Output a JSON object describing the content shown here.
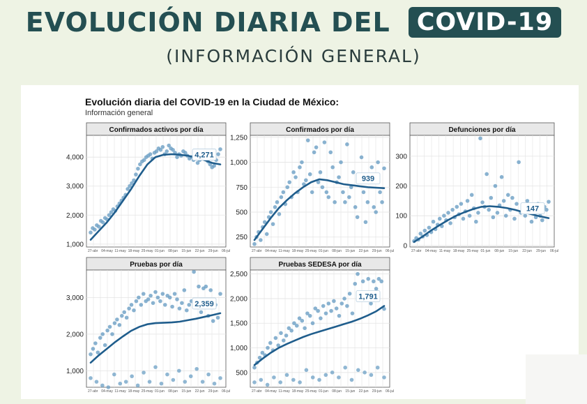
{
  "banner": {
    "title_main": "EVOLUCIÓN DIARIA DEL",
    "title_highlight": "COVID-19",
    "subtitle": "(INFORMACIÓN GENERAL)"
  },
  "figure": {
    "title": "Evolución diaria del COVID-19 en la Ciudad de México:",
    "subtitle": "Información general"
  },
  "colors": {
    "banner_bg": "#eef3e4",
    "banner_text": "#244f52",
    "point": "#6b9fc4",
    "trend": "#1f5d8c",
    "grid": "#e3e3e3",
    "strip": "#e8e8e8"
  },
  "x_tick_labels": [
    "27-abr",
    "04-may",
    "11-may",
    "18-may",
    "25-may",
    "01-jun",
    "08-jun",
    "15-jun",
    "22-jun",
    "29-jun",
    "06-jul"
  ],
  "chart_data": [
    {
      "type": "scatter",
      "title": "Confirmados activos por día",
      "ylim": [
        900,
        4750
      ],
      "yticks": [
        1000,
        2000,
        3000,
        4000
      ],
      "ytick_labels": [
        "1,000",
        "2,000",
        "3,000",
        "4,000"
      ],
      "last_label": "4,271",
      "values": [
        1400,
        1550,
        1500,
        1650,
        1600,
        1800,
        1750,
        1900,
        1850,
        2000,
        2100,
        2200,
        2150,
        2300,
        2400,
        2500,
        2600,
        2700,
        2900,
        3000,
        3100,
        3200,
        3400,
        3600,
        3750,
        3850,
        3900,
        4000,
        4050,
        4100,
        3950,
        4150,
        4200,
        4300,
        4250,
        4350,
        4100,
        4200,
        4400,
        4300,
        4250,
        4150,
        4000,
        4100,
        4050,
        4200,
        4150,
        4050,
        3950,
        4000,
        3900,
        4050,
        3800,
        3900,
        4000,
        4150,
        3950,
        3850,
        3750,
        3650,
        3700,
        3900,
        4100,
        4271
      ],
      "trend": [
        1150,
        1450,
        1750,
        2100,
        2500,
        2900,
        3350,
        3750,
        4000,
        4080,
        4100,
        4080,
        4050,
        3980,
        3900,
        3800,
        3750
      ]
    },
    {
      "type": "scatter",
      "title": "Confirmados por día",
      "ylim": [
        150,
        1270
      ],
      "yticks": [
        250,
        500,
        750,
        1000,
        1250
      ],
      "ytick_labels": [
        "250",
        "500",
        "750",
        "1,000",
        "1,250"
      ],
      "last_label": "939",
      "values": [
        180,
        250,
        300,
        220,
        350,
        400,
        280,
        450,
        500,
        380,
        550,
        600,
        480,
        650,
        700,
        580,
        750,
        800,
        650,
        900,
        850,
        700,
        950,
        1000,
        780,
        820,
        1220,
        880,
        700,
        1100,
        1150,
        800,
        900,
        750,
        1200,
        700,
        650,
        1100,
        950,
        600,
        800,
        850,
        1000,
        700,
        600,
        1180,
        650,
        750,
        900,
        550,
        450,
        800,
        1050,
        700,
        400,
        600,
        850,
        950,
        550,
        500,
        1000,
        700,
        600,
        939
      ],
      "trend": [
        220,
        330,
        440,
        540,
        620,
        690,
        750,
        800,
        830,
        820,
        800,
        780,
        770,
        760,
        750,
        745,
        740
      ]
    },
    {
      "type": "scatter",
      "title": "Defunciones por día",
      "ylim": [
        -5,
        370
      ],
      "yticks": [
        0,
        100,
        200,
        300
      ],
      "ytick_labels": [
        "0",
        "100",
        "200",
        "300"
      ],
      "last_label": "147",
      "values": [
        15,
        25,
        20,
        40,
        30,
        50,
        35,
        60,
        45,
        80,
        55,
        70,
        90,
        65,
        100,
        85,
        110,
        75,
        120,
        95,
        130,
        105,
        140,
        90,
        115,
        150,
        100,
        170,
        125,
        80,
        110,
        360,
        145,
        130,
        240,
        120,
        160,
        95,
        200,
        110,
        135,
        230,
        150,
        100,
        170,
        120,
        160,
        90,
        140,
        280,
        110,
        130,
        100,
        150,
        120,
        80,
        110,
        95,
        140,
        100,
        85,
        130,
        120,
        147
      ],
      "trend": [
        12,
        30,
        50,
        68,
        85,
        100,
        112,
        122,
        130,
        132,
        130,
        126,
        120,
        112,
        105,
        98,
        92
      ]
    },
    {
      "type": "scatter",
      "title": "Pruebas por día",
      "ylim": [
        550,
        3750
      ],
      "yticks": [
        1000,
        2000,
        3000
      ],
      "ytick_labels": [
        "1,000",
        "2,000",
        "3,000"
      ],
      "last_label": "2,359",
      "values": [
        1450,
        1600,
        1750,
        1500,
        1900,
        2000,
        1700,
        2100,
        2200,
        2000,
        2300,
        2400,
        2250,
        2500,
        2600,
        2450,
        2700,
        2800,
        2650,
        2900,
        3000,
        2800,
        3100,
        2900,
        2950,
        3050,
        2850,
        3150,
        3000,
        2900,
        3100,
        2800,
        3050,
        3000,
        2750,
        3100,
        2950,
        2700,
        2850,
        3200,
        2650,
        2800,
        2900,
        3700,
        2750,
        3300,
        2600,
        3250,
        3300,
        2500,
        3200,
        2359,
        2800,
        2450,
        3100
      ],
      "low_values": [
        800,
        700,
        600,
        550,
        900,
        650,
        700,
        850,
        600,
        950,
        700,
        1100,
        650,
        900,
        750,
        1000,
        700,
        850,
        1050,
        700,
        900,
        650,
        800
      ],
      "trend": [
        1220,
        1420,
        1600,
        1780,
        1940,
        2090,
        2200,
        2270,
        2300,
        2310,
        2320,
        2340,
        2380,
        2420,
        2470,
        2520,
        2570
      ]
    },
    {
      "type": "scatter",
      "title": "Pruebas SEDESA por día",
      "ylim": [
        200,
        2580
      ],
      "yticks": [
        500,
        1000,
        1500,
        2000,
        2500
      ],
      "ytick_labels": [
        "500",
        "1,000",
        "1,500",
        "2,000",
        "2,500"
      ],
      "last_label": "1,791",
      "values": [
        600,
        700,
        800,
        900,
        850,
        1000,
        1100,
        950,
        1200,
        1050,
        1300,
        1150,
        1250,
        1400,
        1350,
        1500,
        1450,
        1600,
        1550,
        1400,
        1700,
        1650,
        1500,
        1800,
        1750,
        1600,
        1850,
        1700,
        1900,
        1750,
        1950,
        1800,
        1650,
        1900,
        2000,
        1850,
        2100,
        1700,
        2300,
        2500,
        2100,
        2350,
        2000,
        2400,
        1900,
        2350,
        2200,
        2400,
        2350,
        1791
      ],
      "low_values": [
        300,
        350,
        250,
        400,
        300,
        450,
        350,
        300,
        550,
        400,
        350,
        450,
        500,
        400,
        600,
        350,
        550,
        500,
        450,
        600,
        400
      ],
      "trend": [
        650,
        780,
        900,
        1000,
        1080,
        1150,
        1220,
        1280,
        1330,
        1380,
        1430,
        1480,
        1530,
        1590,
        1660,
        1740,
        1850
      ]
    }
  ]
}
